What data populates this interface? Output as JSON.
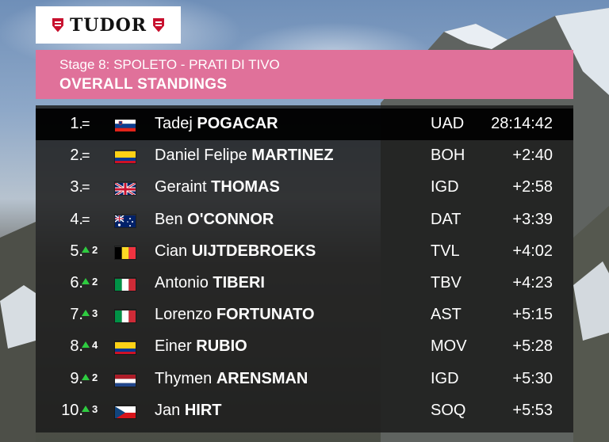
{
  "sponsor": {
    "name": "TUDOR",
    "logo_color": "#c8102e"
  },
  "header": {
    "stage_prefix": "Stage 8:",
    "stage_route": "SPOLETO - PRATI DI TIVO",
    "title": "OVERALL STANDINGS",
    "color": "#e0719a"
  },
  "standings": [
    {
      "pos": "1.",
      "move": "=",
      "gain": "",
      "country": "slovenia",
      "first": "Tadej",
      "last": "POGACAR",
      "team": "UAD",
      "time": "28:14:42"
    },
    {
      "pos": "2.",
      "move": "=",
      "gain": "",
      "country": "colombia",
      "first": "Daniel Felipe",
      "last": "MARTINEZ",
      "team": "BOH",
      "time": "+2:40"
    },
    {
      "pos": "3.",
      "move": "=",
      "gain": "",
      "country": "great-britain",
      "first": "Geraint",
      "last": "THOMAS",
      "team": "IGD",
      "time": "+2:58"
    },
    {
      "pos": "4.",
      "move": "=",
      "gain": "",
      "country": "australia",
      "first": "Ben",
      "last": "O'CONNOR",
      "team": "DAT",
      "time": "+3:39"
    },
    {
      "pos": "5.",
      "move": "up",
      "gain": "2",
      "country": "belgium",
      "first": "Cian",
      "last": "UIJTDEBROEKS",
      "team": "TVL",
      "time": "+4:02"
    },
    {
      "pos": "6.",
      "move": "up",
      "gain": "2",
      "country": "italy",
      "first": "Antonio",
      "last": "TIBERI",
      "team": "TBV",
      "time": "+4:23"
    },
    {
      "pos": "7.",
      "move": "up",
      "gain": "3",
      "country": "italy",
      "first": "Lorenzo",
      "last": "FORTUNATO",
      "team": "AST",
      "time": "+5:15"
    },
    {
      "pos": "8.",
      "move": "up",
      "gain": "4",
      "country": "colombia",
      "first": "Einer",
      "last": "RUBIO",
      "team": "MOV",
      "time": "+5:28"
    },
    {
      "pos": "9.",
      "move": "up",
      "gain": "2",
      "country": "netherlands",
      "first": "Thymen",
      "last": "ARENSMAN",
      "team": "IGD",
      "time": "+5:30"
    },
    {
      "pos": "10.",
      "move": "up",
      "gain": "3",
      "country": "czech-republic",
      "first": "Jan",
      "last": "HIRT",
      "team": "SOQ",
      "time": "+5:53"
    }
  ]
}
